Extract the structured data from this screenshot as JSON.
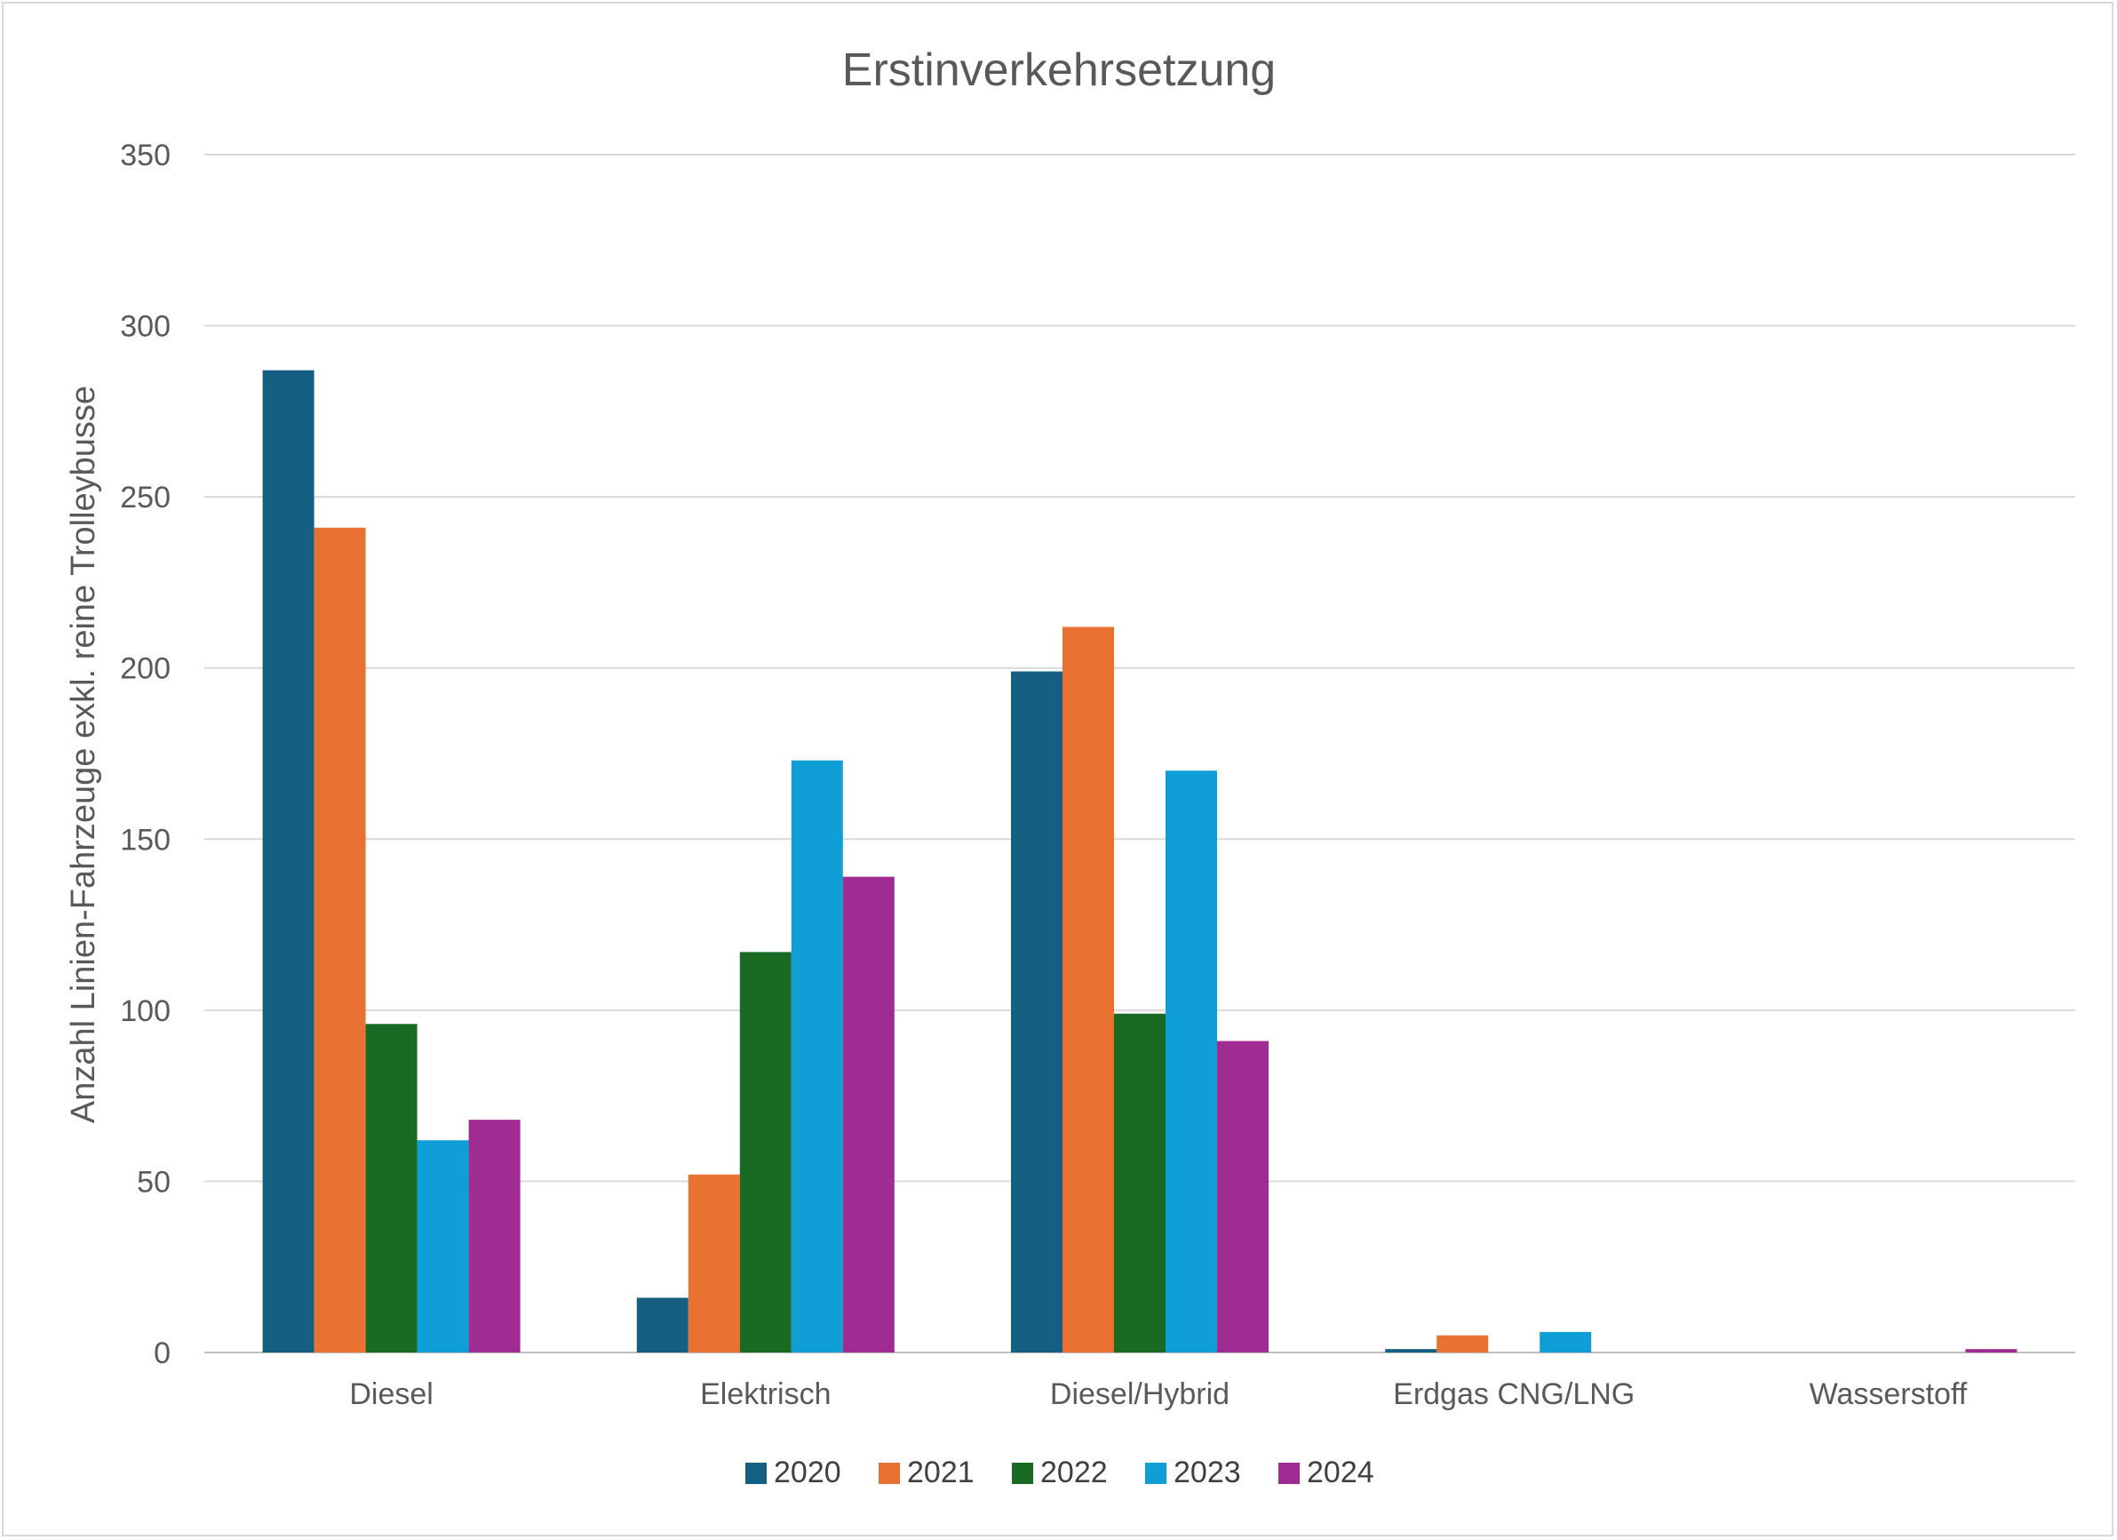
{
  "chart_data": {
    "type": "bar",
    "title": "Erstinverkehrsetzung",
    "xlabel": "",
    "ylabel": "Anzahl Linien-Fahrzeuge exkl. reine Trolleybusse",
    "ylim": [
      0,
      350
    ],
    "yticks": [
      0,
      50,
      100,
      150,
      200,
      250,
      300,
      350
    ],
    "grid": true,
    "legend_position": "bottom",
    "categories": [
      "Diesel",
      "Elektrisch",
      "Diesel/Hybrid",
      "Erdgas CNG/LNG",
      "Wasserstoff"
    ],
    "series": [
      {
        "name": "2020",
        "color": "#156082",
        "values": [
          287,
          16,
          199,
          1,
          0
        ]
      },
      {
        "name": "2021",
        "color": "#E97132",
        "values": [
          241,
          52,
          212,
          5,
          0
        ]
      },
      {
        "name": "2022",
        "color": "#196B24",
        "values": [
          96,
          117,
          99,
          0,
          0
        ]
      },
      {
        "name": "2023",
        "color": "#0F9ED5",
        "values": [
          62,
          173,
          170,
          6,
          0
        ]
      },
      {
        "name": "2024",
        "color": "#A02B93",
        "values": [
          68,
          139,
          91,
          0,
          1
        ]
      }
    ]
  }
}
